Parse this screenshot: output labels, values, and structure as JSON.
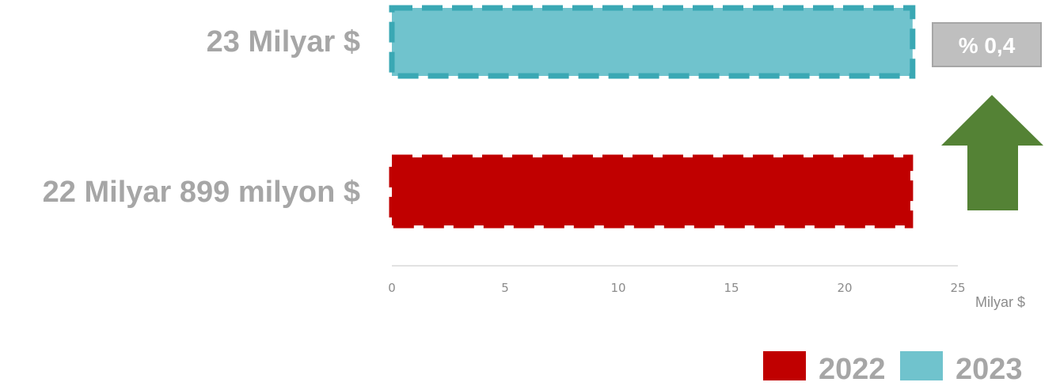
{
  "chart_data": {
    "type": "bar",
    "orientation": "horizontal",
    "categories": [
      "23 Milyar  $",
      "22 Milyar 899 milyon $"
    ],
    "series": [
      {
        "name": "2023",
        "category_index": 0,
        "value": 23.0,
        "color": "#70c3cd",
        "border_color": "#3aa8b4"
      },
      {
        "name": "2022",
        "category_index": 1,
        "value": 22.899,
        "color": "#c00000",
        "border_color": "#c00000"
      }
    ],
    "xlim": [
      0,
      25
    ],
    "ticks": [
      "0",
      "5",
      "10",
      "15",
      "20",
      "25"
    ],
    "xunit": "Milyar $",
    "grid": false,
    "legend": {
      "placement": "bottom-right",
      "items": [
        {
          "label": "2022",
          "color": "#c00000"
        },
        {
          "label": "2023",
          "color": "#70c3cd"
        }
      ]
    },
    "annotation": {
      "text": "% 0,4",
      "box_color": "#bfbfbf",
      "box_border": "#a6a6a6",
      "arrow_direction": "up",
      "arrow_color": "#548235"
    }
  }
}
